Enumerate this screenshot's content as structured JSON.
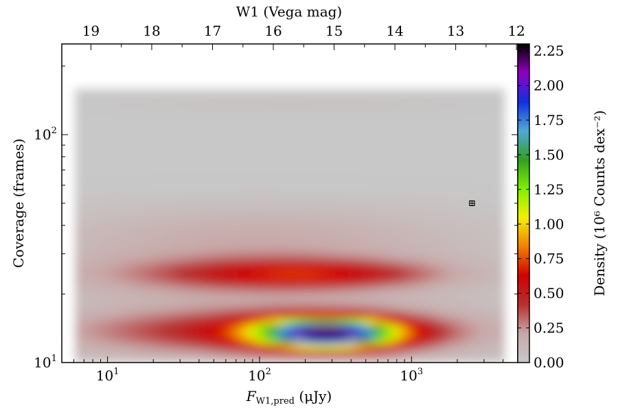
{
  "chart_data": {
    "type": "heatmap",
    "xlabel_main": "F",
    "xlabel_sub": "W1,pred",
    "xlabel_unit": " (μJy)",
    "ylabel": "Coverage (frames)",
    "top_axis_label": "W1 (Vega mag)",
    "colorbar_label": "Density (10⁶ Counts dex⁻²)",
    "x_scale": "log",
    "y_scale": "log",
    "xlim": [
      5,
      5000
    ],
    "ylim": [
      10,
      250
    ],
    "x_ticks": [
      {
        "value": 10,
        "base": "10",
        "exp": "1"
      },
      {
        "value": 100,
        "base": "10",
        "exp": "2"
      },
      {
        "value": 1000,
        "base": "10",
        "exp": "3"
      }
    ],
    "y_ticks": [
      {
        "value": 10,
        "base": "10",
        "exp": "1"
      },
      {
        "value": 100,
        "base": "10",
        "exp": "2"
      }
    ],
    "top_ticks": [
      "19",
      "18",
      "17",
      "16",
      "15",
      "14",
      "13",
      "12"
    ],
    "colorbar": {
      "min": 0.0,
      "max": 2.3,
      "ticks": [
        "0.00",
        "0.25",
        "0.50",
        "0.75",
        "1.00",
        "1.25",
        "1.50",
        "1.75",
        "2.00",
        "2.25"
      ],
      "colors": [
        "#c8c8c8",
        "#c8a8a8",
        "#b83030",
        "#d00000",
        "#f28000",
        "#f4f000",
        "#80f000",
        "#30a020",
        "#50a8d8",
        "#1030e0",
        "#9000c0",
        "#000000"
      ]
    },
    "peak": {
      "x": 270,
      "y": 13,
      "value": 2.25
    },
    "marker": {
      "x": 2500,
      "y": 50
    },
    "grid": false
  },
  "colors": {
    "foreground": "#000000",
    "background": "#ffffff"
  }
}
